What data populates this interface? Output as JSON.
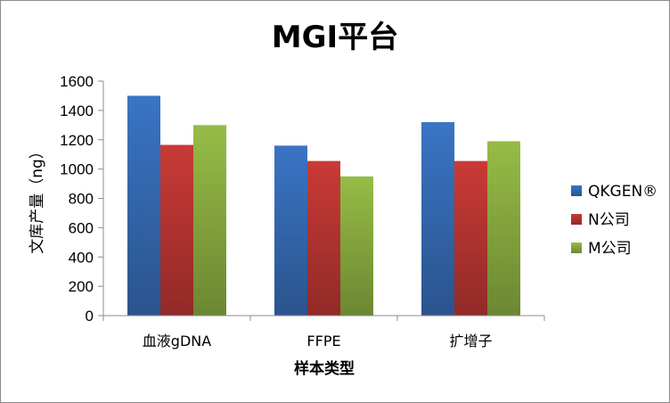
{
  "chart_data": {
    "type": "bar",
    "title": "MGI平台",
    "xlabel": "样本类型",
    "ylabel": "文库产量（ng）",
    "categories": [
      "血液gDNA",
      "FFPE",
      "扩增子"
    ],
    "series": [
      {
        "name": "QKGEN®",
        "color": "#3a74c4",
        "values": [
          1500,
          1160,
          1320
        ]
      },
      {
        "name": "N公司",
        "color": "#c93a36",
        "values": [
          1165,
          1055,
          1055
        ]
      },
      {
        "name": "M公司",
        "color": "#96bc46",
        "values": [
          1300,
          950,
          1190
        ]
      }
    ],
    "ylim": [
      0,
      1600
    ],
    "yticks": [
      0,
      200,
      400,
      600,
      800,
      1000,
      1200,
      1400,
      1600
    ],
    "grid": false,
    "legend": "right"
  }
}
